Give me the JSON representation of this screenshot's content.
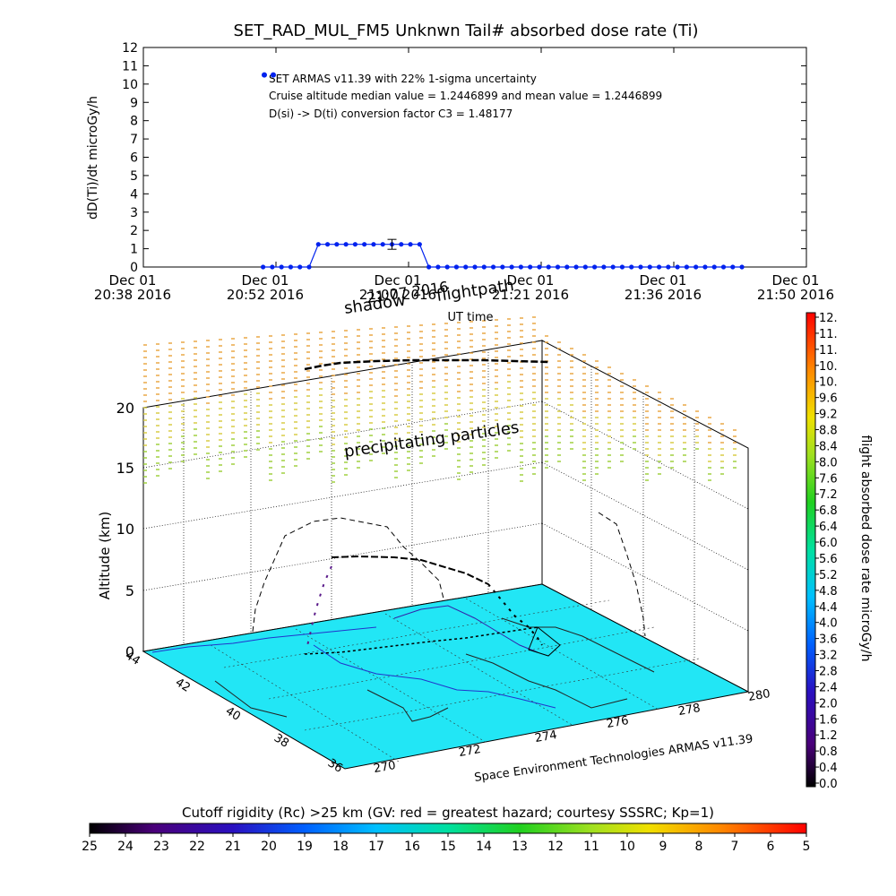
{
  "chart_data": [
    {
      "type": "scatter",
      "title": "SET_RAD_MUL_FM5 Unknwn Tail#  absorbed dose rate (Ti)",
      "ylabel": "dD(Ti)/dt microGy/h",
      "xlabel": "UT time",
      "ylim": [
        0,
        12
      ],
      "y_ticks": [
        "0",
        "1",
        "2",
        "3",
        "4",
        "5",
        "6",
        "7",
        "8",
        "9",
        "10",
        "11",
        "12"
      ],
      "x_ticks": [
        {
          "line1": "Dec 01",
          "line2": "20:38 2016"
        },
        {
          "line1": "Dec 01",
          "line2": "20:52 2016"
        },
        {
          "line1": "Dec 01",
          "line2": "21:07 2016"
        },
        {
          "line1": "Dec 01",
          "line2": "21:21 2016"
        },
        {
          "line1": "Dec 01",
          "line2": "21:36 2016"
        },
        {
          "line1": "Dec 01",
          "line2": "21:50 2016"
        }
      ],
      "x_minutes_range": [
        0,
        72
      ],
      "annotations": [
        "SET ARMAS v11.39 with 22% 1-sigma uncertainty",
        "Cruise altitude median value = 1.2446899 and mean value = 1.2446899",
        "D(si) -> D(ti) conversion factor C3 = 1.48177"
      ],
      "legend_points_value": 10.5,
      "series": [
        {
          "color": "#0022ee",
          "points": [
            [
              13,
              0
            ],
            [
              14,
              0
            ],
            [
              15,
              0
            ],
            [
              16,
              0
            ],
            [
              17,
              0
            ],
            [
              18,
              0
            ],
            [
              19,
              1.24
            ],
            [
              20,
              1.24
            ],
            [
              21,
              1.24
            ],
            [
              22,
              1.24
            ],
            [
              23,
              1.24
            ],
            [
              24,
              1.24
            ],
            [
              25,
              1.24
            ],
            [
              26,
              1.24
            ],
            [
              27,
              1.24
            ],
            [
              28,
              1.24
            ],
            [
              29,
              1.24
            ],
            [
              30,
              1.24
            ],
            [
              31,
              0
            ],
            [
              32,
              0
            ],
            [
              33,
              0
            ],
            [
              34,
              0
            ],
            [
              35,
              0
            ],
            [
              36,
              0
            ],
            [
              37,
              0
            ],
            [
              38,
              0
            ],
            [
              39,
              0
            ],
            [
              40,
              0
            ],
            [
              41,
              0
            ],
            [
              42,
              0
            ],
            [
              43,
              0
            ],
            [
              44,
              0
            ],
            [
              45,
              0
            ],
            [
              46,
              0
            ],
            [
              47,
              0
            ],
            [
              48,
              0
            ],
            [
              49,
              0
            ],
            [
              50,
              0
            ],
            [
              51,
              0
            ],
            [
              52,
              0
            ],
            [
              53,
              0
            ],
            [
              54,
              0
            ],
            [
              55,
              0
            ],
            [
              56,
              0
            ],
            [
              57,
              0
            ],
            [
              58,
              0
            ],
            [
              59,
              0
            ],
            [
              60,
              0
            ],
            [
              61,
              0
            ],
            [
              62,
              0
            ],
            [
              63,
              0
            ],
            [
              64,
              0
            ],
            [
              65,
              0
            ]
          ]
        }
      ],
      "errorbar": {
        "x": 27,
        "y": 1.24,
        "err": 0.27
      }
    },
    {
      "type": "3d-flightpath",
      "zlabel": "Altitude (km)",
      "z_ticks": [
        "0",
        "5",
        "10",
        "15",
        "20"
      ],
      "x_ticks": [
        "270",
        "272",
        "274",
        "276",
        "278",
        "280"
      ],
      "y_ticks": [
        "36",
        "38",
        "40",
        "42",
        "44"
      ],
      "labels": {
        "shadow": "shadow",
        "flightpath": "flightpath",
        "date_overlap": "21:07 2016",
        "ut_time": "UT time",
        "precipitating": "precipitating particles",
        "credit": "Space Environment Technologies ARMAS v11.39"
      },
      "floor_color": "#22e6f5"
    },
    {
      "type": "colorbar",
      "orientation": "vertical",
      "label": "flight absorbed dose rate microGy/h",
      "ticks": [
        "12.",
        "11.",
        "11.",
        "10.",
        "10.",
        "9.6",
        "9.2",
        "8.8",
        "8.4",
        "8.0",
        "7.6",
        "7.2",
        "6.8",
        "6.4",
        "6.0",
        "5.6",
        "5.2",
        "4.8",
        "4.4",
        "4.0",
        "3.6",
        "3.2",
        "2.8",
        "2.4",
        "2.0",
        "1.6",
        "1.2",
        "0.8",
        "0.4",
        "0.0"
      ]
    },
    {
      "type": "colorbar",
      "orientation": "horizontal",
      "label": "Cutoff rigidity (Rc) >25 km (GV: red = greatest hazard; courtesy SSSRC; Kp=1)",
      "ticks": [
        "25",
        "24",
        "23",
        "22",
        "21",
        "20",
        "19",
        "18",
        "17",
        "16",
        "15",
        "14",
        "13",
        "12",
        "11",
        "10",
        "9",
        "8",
        "7",
        "6",
        "5"
      ]
    }
  ],
  "colors": {
    "data_blue": "#0022ee",
    "floor_cyan": "#22e6f5",
    "accent_orange": "#e8a23a",
    "accent_green": "#9acd32"
  }
}
